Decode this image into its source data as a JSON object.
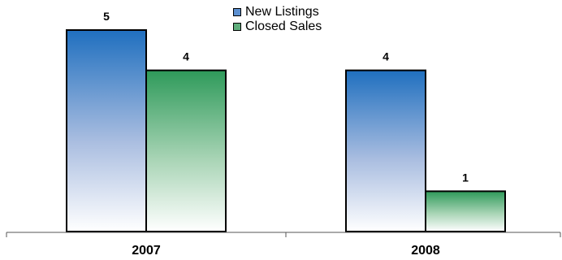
{
  "chart_data": {
    "type": "bar",
    "categories": [
      "2007",
      "2008"
    ],
    "series": [
      {
        "name": "New Listings",
        "values": [
          5,
          4
        ]
      },
      {
        "name": "Closed Sales",
        "values": [
          4,
          1
        ]
      }
    ],
    "ylim": [
      0,
      5
    ],
    "grid": false,
    "legend_position": "top-center",
    "colors": {
      "New Listings": "#1f6fbf",
      "Closed Sales": "#2e9a5a"
    }
  }
}
